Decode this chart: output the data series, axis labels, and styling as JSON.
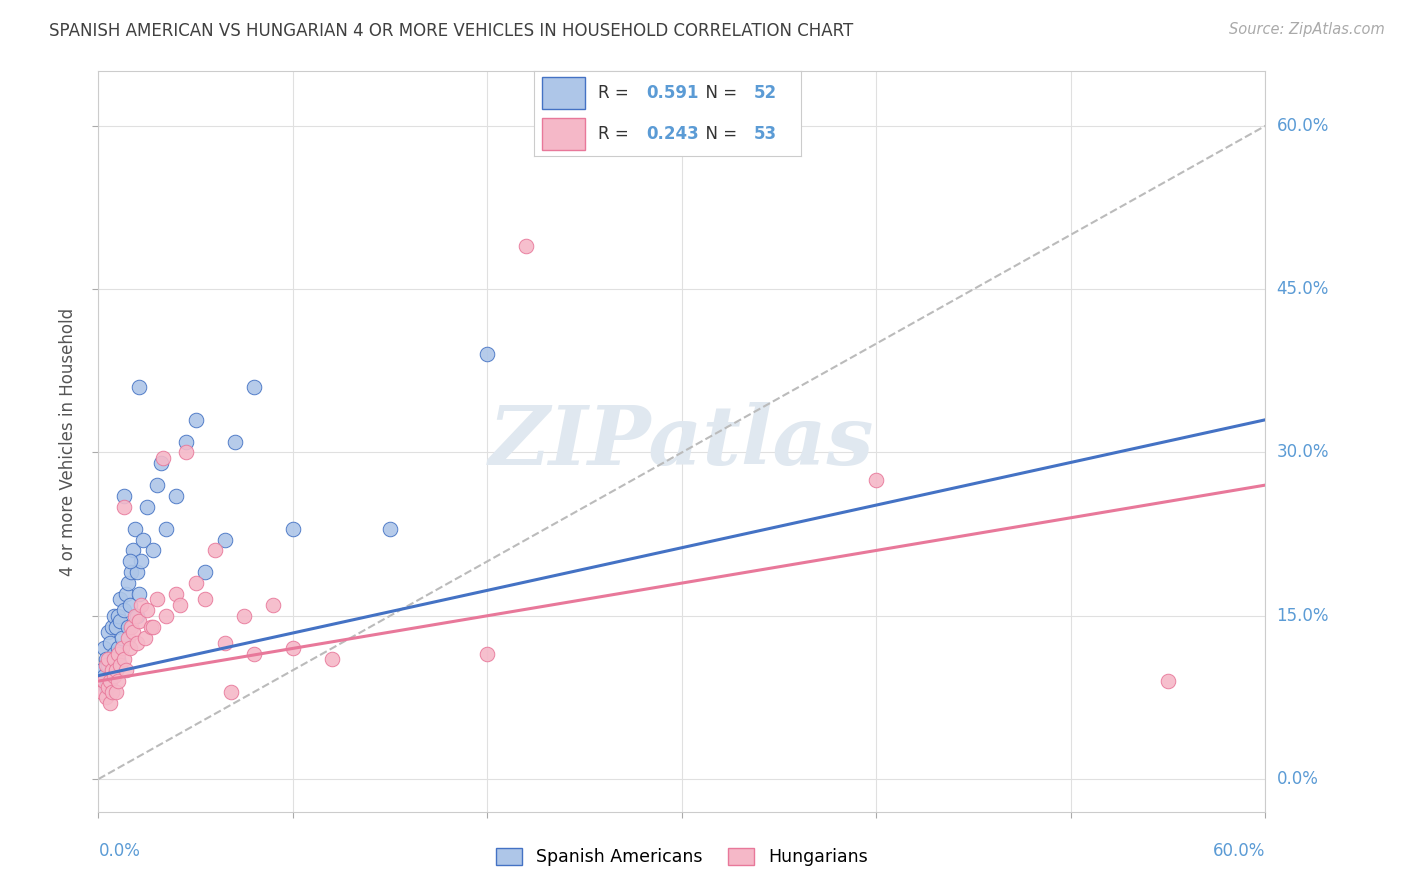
{
  "title": "SPANISH AMERICAN VS HUNGARIAN 4 OR MORE VEHICLES IN HOUSEHOLD CORRELATION CHART",
  "source": "Source: ZipAtlas.com",
  "ylabel": "4 or more Vehicles in Household",
  "xlim": [
    0.0,
    60.0
  ],
  "ylim": [
    -3.0,
    65.0
  ],
  "legend_label1": "Spanish Americans",
  "legend_label2": "Hungarians",
  "R1": "0.591",
  "N1": "52",
  "R2": "0.243",
  "N2": "53",
  "color_blue": "#aec6e8",
  "color_pink": "#f5b8c8",
  "line_blue": "#4472c4",
  "line_pink": "#e8789a",
  "diag_color": "#bbbbbb",
  "watermark_text": "ZIPatlas",
  "watermark_color": "#e0e8f0",
  "background_color": "#ffffff",
  "grid_color": "#e0e0e0",
  "title_color": "#404040",
  "axis_label_color": "#5b9bd5",
  "ytick_vals": [
    0,
    15,
    30,
    45,
    60
  ],
  "ytick_labels": [
    "0.0%",
    "15.0%",
    "30.0%",
    "45.0%",
    "60.0%"
  ],
  "xtick_left_label": "0.0%",
  "xtick_right_label": "60.0%",
  "blue_line_x0": 0.0,
  "blue_line_y0": 9.5,
  "blue_line_x1": 60.0,
  "blue_line_y1": 33.0,
  "pink_line_x0": 0.0,
  "pink_line_y0": 9.0,
  "pink_line_x1": 60.0,
  "pink_line_y1": 27.0,
  "sa_x": [
    0.2,
    0.3,
    0.3,
    0.4,
    0.4,
    0.5,
    0.5,
    0.6,
    0.6,
    0.7,
    0.7,
    0.8,
    0.8,
    0.9,
    0.9,
    1.0,
    1.0,
    1.0,
    1.1,
    1.1,
    1.2,
    1.3,
    1.4,
    1.5,
    1.5,
    1.6,
    1.7,
    1.8,
    1.9,
    2.0,
    2.0,
    2.1,
    2.2,
    2.3,
    2.5,
    2.8,
    3.0,
    3.2,
    3.5,
    4.0,
    4.5,
    5.0,
    5.5,
    6.5,
    7.0,
    8.0,
    10.0,
    15.0,
    20.0,
    1.3,
    1.6,
    2.1
  ],
  "sa_y": [
    10.0,
    9.5,
    12.0,
    8.5,
    11.0,
    10.5,
    13.5,
    9.0,
    12.5,
    14.0,
    10.0,
    11.5,
    15.0,
    10.0,
    14.0,
    12.0,
    15.0,
    11.0,
    14.5,
    16.5,
    13.0,
    15.5,
    17.0,
    14.0,
    18.0,
    16.0,
    19.0,
    21.0,
    23.0,
    15.0,
    19.0,
    17.0,
    20.0,
    22.0,
    25.0,
    21.0,
    27.0,
    29.0,
    23.0,
    26.0,
    31.0,
    33.0,
    19.0,
    22.0,
    31.0,
    36.0,
    23.0,
    23.0,
    39.0,
    26.0,
    20.0,
    36.0
  ],
  "hu_x": [
    0.2,
    0.3,
    0.4,
    0.4,
    0.5,
    0.5,
    0.6,
    0.6,
    0.7,
    0.7,
    0.8,
    0.8,
    0.9,
    0.9,
    1.0,
    1.0,
    1.1,
    1.2,
    1.3,
    1.4,
    1.5,
    1.6,
    1.7,
    1.8,
    1.9,
    2.0,
    2.1,
    2.2,
    2.4,
    2.5,
    2.7,
    3.0,
    3.3,
    3.5,
    4.0,
    4.5,
    5.0,
    5.5,
    6.0,
    6.5,
    7.5,
    9.0,
    10.0,
    12.0,
    20.0,
    22.0,
    40.0,
    55.0,
    1.3,
    2.8,
    4.2,
    6.8,
    8.0
  ],
  "hu_y": [
    8.0,
    9.0,
    7.5,
    10.5,
    8.5,
    11.0,
    9.0,
    7.0,
    10.0,
    8.0,
    9.5,
    11.0,
    8.0,
    10.0,
    9.0,
    11.5,
    10.5,
    12.0,
    11.0,
    10.0,
    13.0,
    12.0,
    14.0,
    13.5,
    15.0,
    12.5,
    14.5,
    16.0,
    13.0,
    15.5,
    14.0,
    16.5,
    29.5,
    15.0,
    17.0,
    30.0,
    18.0,
    16.5,
    21.0,
    12.5,
    15.0,
    16.0,
    12.0,
    11.0,
    11.5,
    49.0,
    27.5,
    9.0,
    25.0,
    14.0,
    16.0,
    8.0,
    11.5
  ]
}
